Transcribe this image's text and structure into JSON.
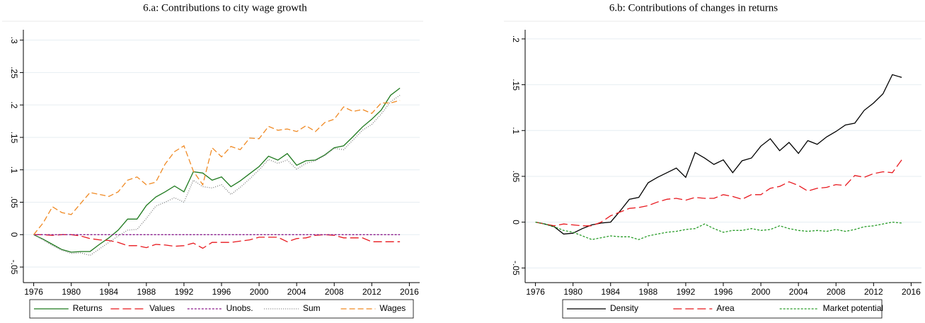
{
  "chart_data": [
    {
      "type": "line",
      "title": "6.a: Contributions to city wage growth",
      "x": [
        1976,
        1977,
        1978,
        1979,
        1980,
        1981,
        1982,
        1983,
        1984,
        1985,
        1986,
        1987,
        1988,
        1989,
        1990,
        1991,
        1992,
        1993,
        1994,
        1995,
        1996,
        1997,
        1998,
        1999,
        2000,
        2001,
        2002,
        2003,
        2004,
        2005,
        2006,
        2007,
        2008,
        2009,
        2010,
        2011,
        2012,
        2013,
        2014,
        2015
      ],
      "series": [
        {
          "name": "Returns",
          "color": "#1f7a1f",
          "dash": "",
          "values": [
            0,
            -0.007,
            -0.015,
            -0.023,
            -0.027,
            -0.026,
            -0.026,
            -0.015,
            -0.005,
            0.007,
            0.024,
            0.024,
            0.045,
            0.058,
            0.066,
            0.075,
            0.066,
            0.097,
            0.095,
            0.084,
            0.089,
            0.074,
            0.083,
            0.094,
            0.105,
            0.121,
            0.115,
            0.125,
            0.107,
            0.114,
            0.115,
            0.123,
            0.134,
            0.137,
            0.151,
            0.166,
            0.178,
            0.192,
            0.215,
            0.226
          ]
        },
        {
          "name": "Values",
          "color": "#e8191f",
          "dash": "12 5",
          "values": [
            0,
            0,
            -0.001,
            0,
            0,
            -0.002,
            -0.006,
            -0.008,
            -0.009,
            -0.012,
            -0.017,
            -0.017,
            -0.02,
            -0.015,
            -0.016,
            -0.018,
            -0.017,
            -0.013,
            -0.021,
            -0.012,
            -0.012,
            -0.012,
            -0.01,
            -0.008,
            -0.004,
            -0.004,
            -0.004,
            -0.011,
            -0.006,
            -0.005,
            -0.001,
            0,
            -0.001,
            -0.005,
            -0.005,
            -0.005,
            -0.011,
            -0.011,
            -0.011,
            -0.011
          ]
        },
        {
          "name": "Unobs.",
          "color": "#8b1a8b",
          "dash": "3 2",
          "values": [
            0,
            0,
            0,
            0,
            0,
            0,
            0,
            0,
            0,
            0,
            0,
            0,
            0,
            0,
            0,
            0,
            0,
            0,
            0,
            0,
            0,
            0,
            0,
            0,
            0,
            0,
            0,
            0,
            0,
            0,
            0,
            0,
            0,
            0,
            0,
            0,
            0,
            0,
            0,
            0
          ]
        },
        {
          "name": "Sum",
          "color": "#7f7f7f",
          "dash": "1 2",
          "values": [
            0,
            -0.008,
            -0.017,
            -0.024,
            -0.029,
            -0.028,
            -0.032,
            -0.022,
            -0.012,
            -0.002,
            0.007,
            0.008,
            0.025,
            0.044,
            0.05,
            0.057,
            0.05,
            0.084,
            0.074,
            0.072,
            0.077,
            0.062,
            0.073,
            0.086,
            0.1,
            0.116,
            0.11,
            0.115,
            0.101,
            0.11,
            0.114,
            0.122,
            0.133,
            0.131,
            0.146,
            0.161,
            0.17,
            0.186,
            0.205,
            0.215
          ]
        },
        {
          "name": "Wages",
          "color": "#f08a24",
          "dash": "8 4",
          "values": [
            0,
            0.018,
            0.043,
            0.034,
            0.031,
            0.048,
            0.065,
            0.062,
            0.059,
            0.066,
            0.084,
            0.089,
            0.077,
            0.081,
            0.109,
            0.128,
            0.137,
            0.098,
            0.077,
            0.134,
            0.12,
            0.136,
            0.131,
            0.149,
            0.148,
            0.167,
            0.161,
            0.163,
            0.159,
            0.168,
            0.159,
            0.173,
            0.178,
            0.197,
            0.19,
            0.193,
            0.187,
            0.203,
            0.203,
            0.207
          ]
        }
      ],
      "xlim": [
        1974.9,
        2017.1
      ],
      "ylim": [
        -0.074,
        0.316
      ],
      "xticks": [
        1976,
        1980,
        1984,
        1988,
        1992,
        1996,
        2000,
        2004,
        2008,
        2012,
        2016
      ],
      "yticks": [
        {
          "value": -0.05,
          "label": "-.05"
        },
        0,
        {
          "value": 0.05,
          "label": ".05"
        },
        {
          "value": 0.1,
          "label": ".1"
        },
        {
          "value": 0.15,
          "label": ".15"
        },
        {
          "value": 0.2,
          "label": ".2"
        },
        {
          "value": 0.25,
          "label": ".25"
        },
        {
          "value": 0.3,
          "label": ".3"
        }
      ],
      "grid": true,
      "legend": "bottom"
    },
    {
      "type": "line",
      "title": "6.b: Contributions of changes in returns",
      "x": [
        1976,
        1977,
        1978,
        1979,
        1980,
        1981,
        1982,
        1983,
        1984,
        1985,
        1986,
        1987,
        1988,
        1989,
        1990,
        1991,
        1992,
        1993,
        1994,
        1995,
        1996,
        1997,
        1998,
        1999,
        2000,
        2001,
        2002,
        2003,
        2004,
        2005,
        2006,
        2007,
        2008,
        2009,
        2010,
        2011,
        2012,
        2013,
        2014,
        2015
      ],
      "series": [
        {
          "name": "Density",
          "color": "#000000",
          "dash": "",
          "values": [
            0,
            -0.002,
            -0.005,
            -0.013,
            -0.012,
            -0.007,
            -0.003,
            -0.001,
            0,
            0.012,
            0.025,
            0.027,
            0.043,
            0.049,
            0.054,
            0.059,
            0.049,
            0.076,
            0.07,
            0.063,
            0.068,
            0.054,
            0.067,
            0.07,
            0.083,
            0.091,
            0.078,
            0.087,
            0.075,
            0.089,
            0.085,
            0.093,
            0.099,
            0.106,
            0.108,
            0.122,
            0.13,
            0.14,
            0.161,
            0.158
          ]
        },
        {
          "name": "Area",
          "color": "#e8191f",
          "dash": "12 5",
          "values": [
            0,
            -0.002,
            -0.004,
            -0.002,
            -0.003,
            -0.004,
            -0.004,
            0,
            0.007,
            0.011,
            0.015,
            0.016,
            0.018,
            0.022,
            0.025,
            0.026,
            0.024,
            0.027,
            0.026,
            0.026,
            0.03,
            0.028,
            0.025,
            0.03,
            0.03,
            0.037,
            0.039,
            0.044,
            0.04,
            0.034,
            0.037,
            0.038,
            0.041,
            0.04,
            0.051,
            0.049,
            0.053,
            0.055,
            0.054,
            0.068
          ]
        },
        {
          "name": "Market potential",
          "color": "#2a9d2a",
          "dash": "3 2",
          "values": [
            0,
            -0.002,
            -0.005,
            -0.009,
            -0.011,
            -0.015,
            -0.019,
            -0.017,
            -0.015,
            -0.016,
            -0.016,
            -0.019,
            -0.015,
            -0.013,
            -0.011,
            -0.01,
            -0.008,
            -0.007,
            -0.002,
            -0.007,
            -0.011,
            -0.009,
            -0.009,
            -0.007,
            -0.009,
            -0.008,
            -0.004,
            -0.007,
            -0.009,
            -0.01,
            -0.009,
            -0.01,
            -0.008,
            -0.01,
            -0.008,
            -0.005,
            -0.004,
            -0.002,
            0,
            -0.001
          ]
        }
      ],
      "xlim": [
        1974.9,
        2017.1
      ],
      "ylim": [
        -0.066,
        0.21
      ],
      "xticks": [
        1976,
        1980,
        1984,
        1988,
        1992,
        1996,
        2000,
        2004,
        2008,
        2012,
        2016
      ],
      "yticks": [
        {
          "value": -0.05,
          "label": "-.05"
        },
        0,
        {
          "value": 0.05,
          "label": ".05"
        },
        {
          "value": 0.1,
          "label": ".1"
        },
        {
          "value": 0.15,
          "label": ".15"
        },
        {
          "value": 0.2,
          "label": ".2"
        }
      ],
      "grid": true,
      "legend": "bottom"
    }
  ]
}
